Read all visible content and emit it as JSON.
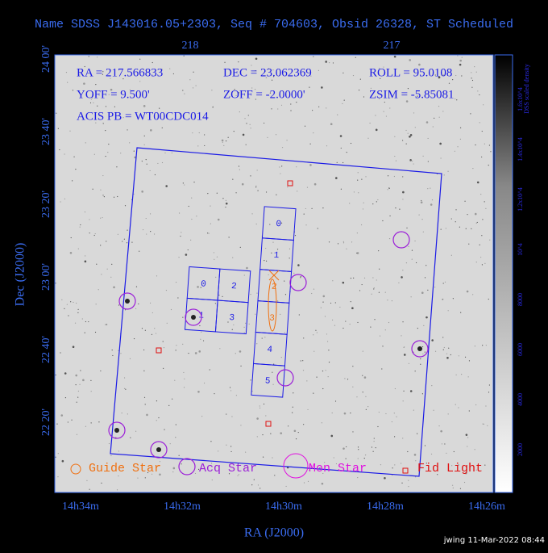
{
  "header": {
    "title": "Name SDSS J143016.05+2303, Seq # 704603, Obsid 26328, ST Scheduled"
  },
  "info": [
    "RA = 217.566833",
    "DEC = 23.062369",
    "ROLL = 95.0108",
    "YOFF = 9.500'",
    "ZOFF = -2.0000'",
    "ZSIM = -5.85081",
    "ACIS PB = WT00CDC014"
  ],
  "axes": {
    "top_labels": [
      "218",
      "217"
    ],
    "left_labels": [
      "24 00'",
      "23 40'",
      "23 20'",
      "23 00'",
      "22 40'",
      "22 20'"
    ],
    "bottom_labels": [
      "14h34m",
      "14h32m",
      "14h30m",
      "14h28m",
      "14h26m"
    ],
    "x_label": "RA (J2000)",
    "y_label": "Dec (J2000)"
  },
  "acis_i": [
    "0",
    "2",
    "1",
    "3"
  ],
  "acis_s": [
    "0",
    "1",
    "2",
    "3",
    "4",
    "5"
  ],
  "legend": [
    "Guide Star",
    "Acq Star",
    "Mon Star",
    "Fid Light"
  ],
  "colorbar": {
    "label": "DSS scaled density",
    "ticks": [
      "2000",
      "4000",
      "6000",
      "8000",
      "10^4",
      "1.2x10^4",
      "1.4x10^4",
      "1.6x10^4"
    ]
  },
  "footer": "jwing 11-Mar-2022 08:44"
}
